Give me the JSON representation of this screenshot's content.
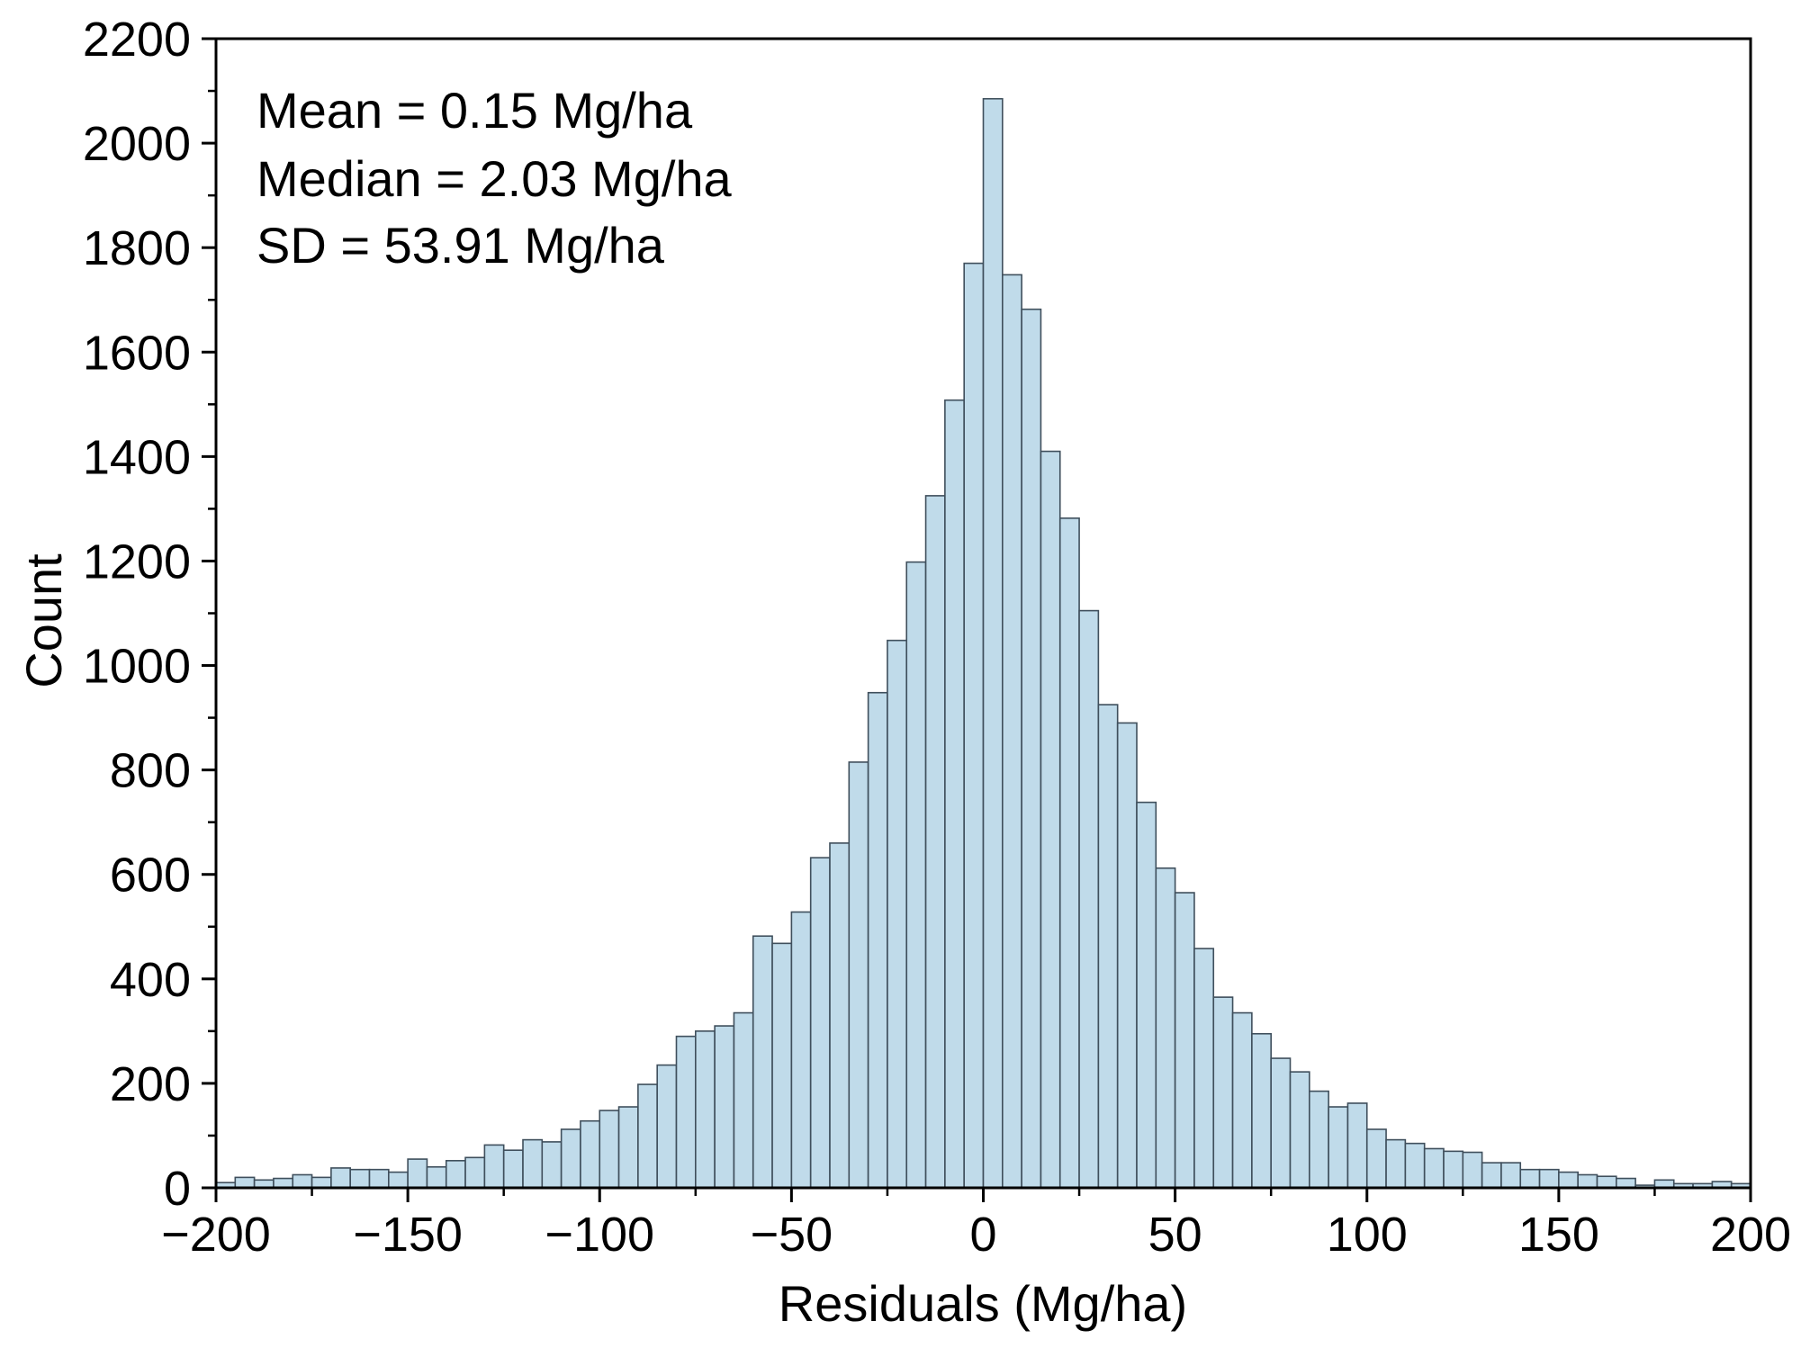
{
  "chart_data": {
    "type": "bar",
    "title": "",
    "xlabel": "Residuals (Mg/ha)",
    "ylabel": "Count",
    "xlim": [
      -200,
      200
    ],
    "ylim": [
      0,
      2200
    ],
    "xticks": [
      -200,
      -150,
      -100,
      -50,
      0,
      50,
      100,
      150,
      200
    ],
    "xtick_labels": [
      "−200",
      "−150",
      "−100",
      "−50",
      "0",
      "50",
      "100",
      "150",
      "200"
    ],
    "yticks": [
      0,
      200,
      400,
      600,
      800,
      1000,
      1200,
      1400,
      1600,
      1800,
      2000,
      2200
    ],
    "ytick_labels": [
      "0",
      "200",
      "400",
      "600",
      "800",
      "1000",
      "1200",
      "1400",
      "1600",
      "1800",
      "2000",
      "2200"
    ],
    "bin_start": -200,
    "bin_width": 5,
    "values": [
      10,
      20,
      15,
      18,
      25,
      20,
      38,
      35,
      35,
      30,
      55,
      40,
      52,
      58,
      82,
      72,
      92,
      88,
      112,
      128,
      148,
      155,
      198,
      235,
      290,
      300,
      310,
      335,
      482,
      468,
      528,
      632,
      660,
      815,
      948,
      1048,
      1198,
      1325,
      1508,
      1770,
      2085,
      1748,
      1682,
      1410,
      1282,
      1105,
      925,
      890,
      738,
      612,
      565,
      458,
      365,
      335,
      295,
      248,
      222,
      185,
      155,
      162,
      112,
      92,
      85,
      75,
      70,
      68,
      48,
      48,
      35,
      35,
      30,
      25,
      22,
      18,
      5,
      15,
      8,
      8,
      12,
      8
    ],
    "annotations": [
      "Mean = 0.15 Mg/ha",
      "Median = 2.03 Mg/ha",
      "SD = 53.91 Mg/ha"
    ],
    "bar_color": "#c0dbea",
    "edge_color": "#3f4f5c"
  }
}
